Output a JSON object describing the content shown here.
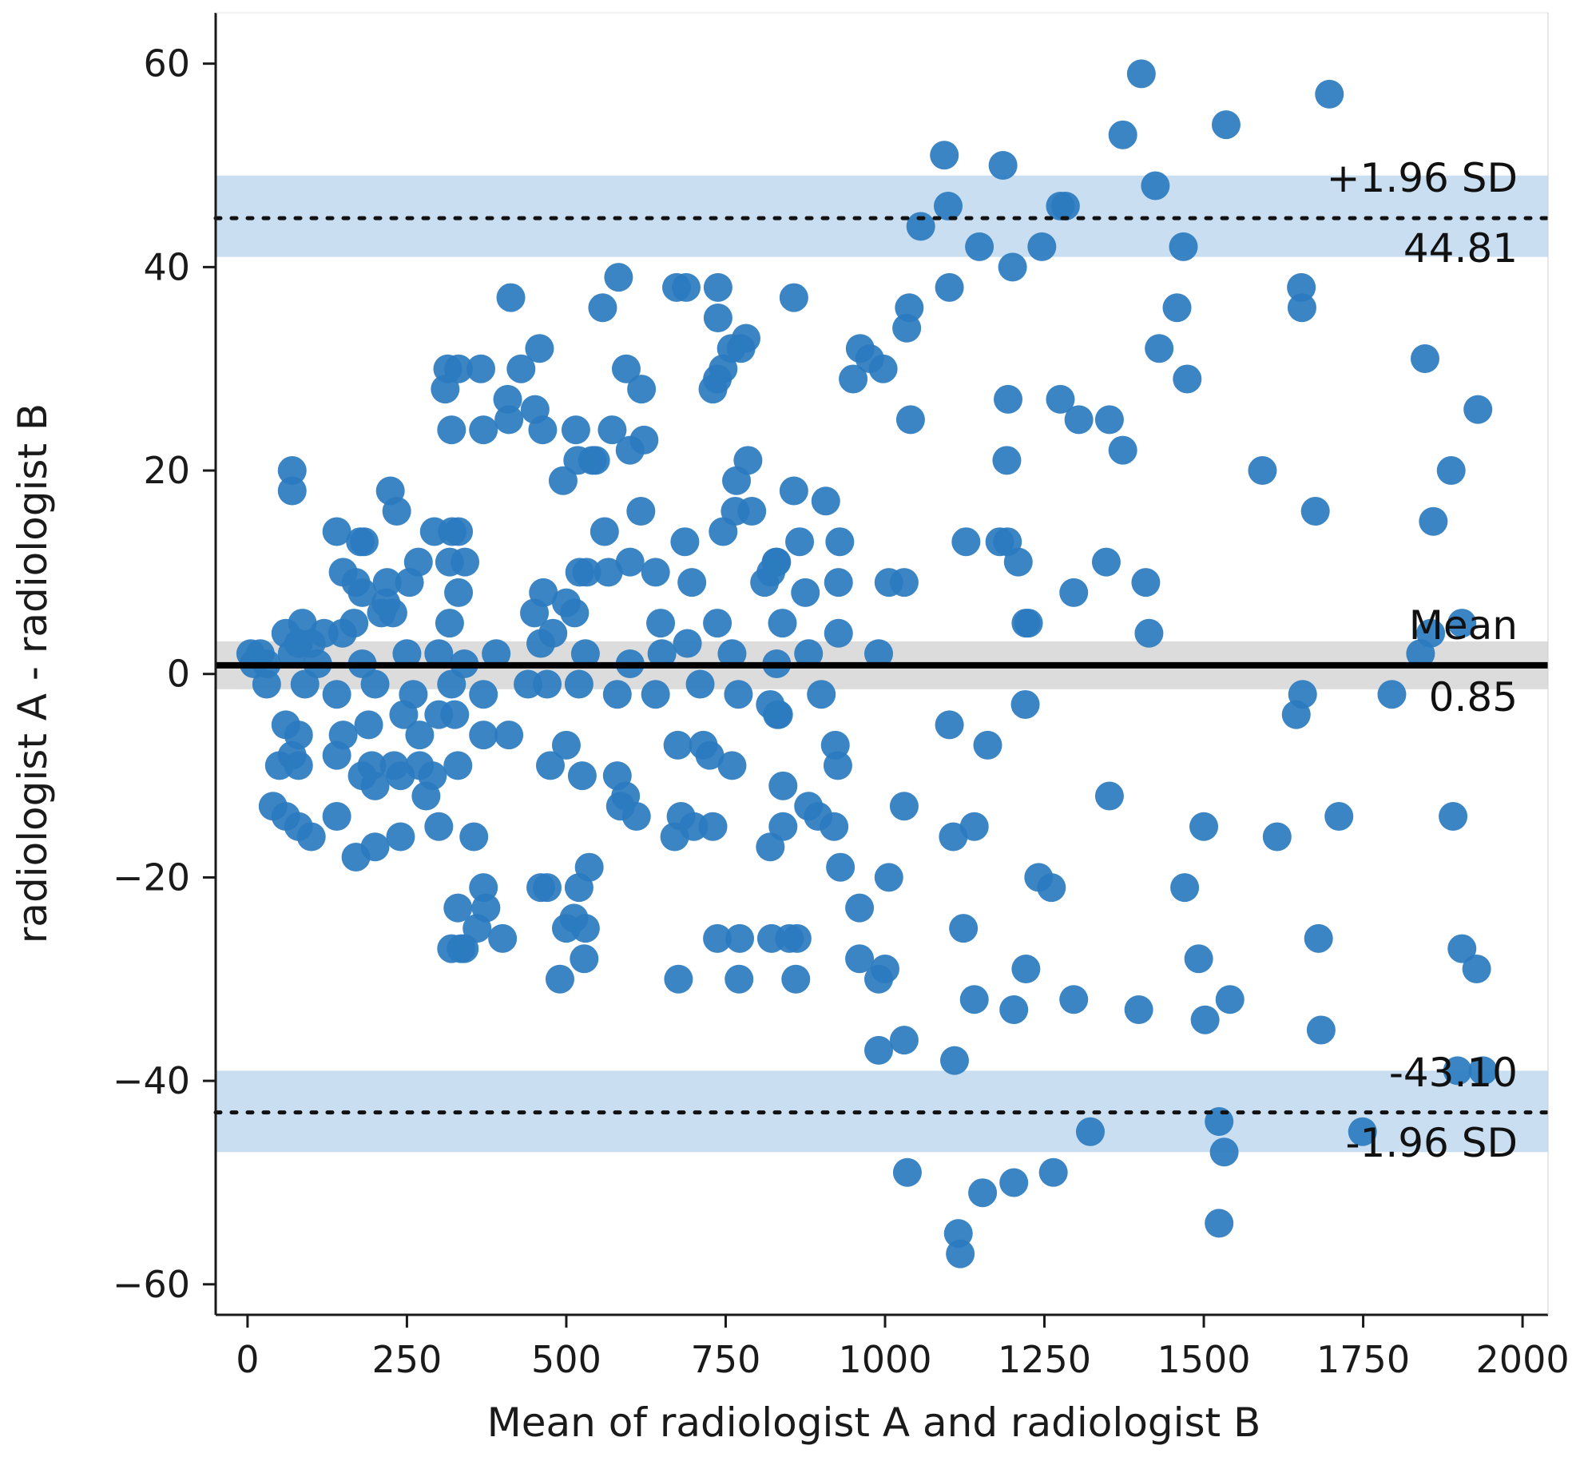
{
  "chart_data": {
    "type": "scatter",
    "title": "",
    "xlabel": "Mean of radiologist A and radiologist B",
    "ylabel": "radiologist A - radiologist B",
    "xlim": [
      -50,
      2040
    ],
    "ylim": [
      -63,
      65
    ],
    "xticks": [
      0,
      250,
      500,
      750,
      1000,
      1250,
      1500,
      1750,
      2000
    ],
    "yticks": [
      -60,
      -40,
      -20,
      0,
      20,
      40,
      60
    ],
    "xtick_labels": [
      "0",
      "250",
      "500",
      "750",
      "1000",
      "1250",
      "1500",
      "1750",
      "2000"
    ],
    "ytick_labels": [
      "−60",
      "−40",
      "−20",
      "0",
      "20",
      "40",
      "60"
    ],
    "grid": false,
    "colors": {
      "points": "#2b7bbf",
      "band": "#c9def0",
      "mean_band": "#dcdcdc",
      "mean_line": "#000000",
      "axis": "#1a1a1a"
    },
    "mean": {
      "value": 0.85,
      "ci": [
        -1.5,
        3.2
      ],
      "label": "Mean",
      "value_label": "0.85"
    },
    "upper_loa": {
      "value": 44.81,
      "ci": [
        41.0,
        49.0
      ],
      "label": "+1.96 SD",
      "value_label": "44.81"
    },
    "lower_loa": {
      "value": -43.1,
      "ci": [
        -47.0,
        -39.0
      ],
      "label": "-1.96 SD",
      "value_label": "-43.10"
    },
    "points": [
      [
        1402,
        59
      ],
      [
        1697,
        57
      ],
      [
        1535,
        54
      ],
      [
        1373,
        53
      ],
      [
        1093,
        51
      ],
      [
        1185,
        50
      ],
      [
        1424,
        48
      ],
      [
        1275,
        46
      ],
      [
        1099,
        46
      ],
      [
        1056,
        44
      ],
      [
        1283,
        46
      ],
      [
        1148,
        42
      ],
      [
        1246,
        42
      ],
      [
        1468,
        42
      ],
      [
        1200,
        40
      ],
      [
        1101,
        38
      ],
      [
        413,
        37
      ],
      [
        557,
        36
      ],
      [
        582,
        39
      ],
      [
        673,
        38
      ],
      [
        688,
        38
      ],
      [
        738,
        38
      ],
      [
        857,
        37
      ],
      [
        1038,
        36
      ],
      [
        1458,
        36
      ],
      [
        1653,
        38
      ],
      [
        1654,
        36
      ],
      [
        1034,
        34
      ],
      [
        458,
        32
      ],
      [
        738,
        35
      ],
      [
        774,
        32
      ],
      [
        782,
        33
      ],
      [
        759,
        32
      ],
      [
        746,
        30
      ],
      [
        1430,
        32
      ],
      [
        1847,
        31
      ],
      [
        314,
        30
      ],
      [
        331,
        30
      ],
      [
        366,
        30
      ],
      [
        429,
        30
      ],
      [
        594,
        30
      ],
      [
        618,
        28
      ],
      [
        310,
        28
      ],
      [
        730,
        28
      ],
      [
        737,
        29
      ],
      [
        950,
        29
      ],
      [
        961,
        32
      ],
      [
        976,
        31
      ],
      [
        997,
        30
      ],
      [
        1275,
        27
      ],
      [
        1193,
        27
      ],
      [
        1474,
        29
      ],
      [
        1930,
        26
      ],
      [
        408,
        27
      ],
      [
        410,
        25
      ],
      [
        451,
        26
      ],
      [
        463,
        24
      ],
      [
        515,
        24
      ],
      [
        1040,
        25
      ],
      [
        1304,
        25
      ],
      [
        1352,
        25
      ],
      [
        1373,
        22
      ],
      [
        320,
        24
      ],
      [
        370,
        24
      ],
      [
        600,
        22
      ],
      [
        622,
        23
      ],
      [
        518,
        21
      ],
      [
        541,
        21
      ],
      [
        546,
        21
      ],
      [
        572,
        24
      ],
      [
        495,
        19
      ],
      [
        767,
        19
      ],
      [
        785,
        21
      ],
      [
        1191,
        21
      ],
      [
        1592,
        20
      ],
      [
        1888,
        20
      ],
      [
        70,
        20
      ],
      [
        70,
        18
      ],
      [
        224,
        18
      ],
      [
        234,
        16
      ],
      [
        617,
        16
      ],
      [
        765,
        16
      ],
      [
        791,
        16
      ],
      [
        857,
        18
      ],
      [
        907,
        17
      ],
      [
        1675,
        16
      ],
      [
        1860,
        15
      ],
      [
        140,
        14
      ],
      [
        177,
        13
      ],
      [
        183,
        13
      ],
      [
        293,
        14
      ],
      [
        321,
        14
      ],
      [
        331,
        14
      ],
      [
        341,
        11
      ],
      [
        560,
        14
      ],
      [
        640,
        10
      ],
      [
        686,
        13
      ],
      [
        746,
        14
      ],
      [
        829,
        11
      ],
      [
        866,
        13
      ],
      [
        929,
        13
      ],
      [
        1127,
        13
      ],
      [
        1180,
        13
      ],
      [
        1192,
        13
      ],
      [
        1209,
        11
      ],
      [
        1347,
        11
      ],
      [
        150,
        10
      ],
      [
        170,
        9
      ],
      [
        219,
        9
      ],
      [
        254,
        9
      ],
      [
        268,
        11
      ],
      [
        317,
        11
      ],
      [
        521,
        10
      ],
      [
        532,
        10
      ],
      [
        566,
        10
      ],
      [
        600,
        11
      ],
      [
        697,
        9
      ],
      [
        811,
        9
      ],
      [
        821,
        10
      ],
      [
        830,
        11
      ],
      [
        927,
        9
      ],
      [
        1006,
        9
      ],
      [
        1030,
        9
      ],
      [
        1409,
        9
      ],
      [
        180,
        8
      ],
      [
        331,
        8
      ],
      [
        464,
        8
      ],
      [
        500,
        7
      ],
      [
        513,
        6
      ],
      [
        875,
        8
      ],
      [
        1296,
        8
      ],
      [
        1221,
        5
      ],
      [
        1225,
        5
      ],
      [
        86,
        5
      ],
      [
        120,
        4
      ],
      [
        149,
        4
      ],
      [
        167,
        5
      ],
      [
        210,
        6
      ],
      [
        217,
        7
      ],
      [
        228,
        6
      ],
      [
        317,
        5
      ],
      [
        450,
        6
      ],
      [
        479,
        4
      ],
      [
        648,
        5
      ],
      [
        737,
        5
      ],
      [
        839,
        5
      ],
      [
        927,
        4
      ],
      [
        1414,
        4
      ],
      [
        1856,
        4
      ],
      [
        1905,
        5
      ],
      [
        60,
        4
      ],
      [
        80,
        3
      ],
      [
        100,
        3
      ],
      [
        5,
        2
      ],
      [
        10,
        1
      ],
      [
        20,
        2
      ],
      [
        30,
        1
      ],
      [
        70,
        2
      ],
      [
        110,
        1
      ],
      [
        180,
        1
      ],
      [
        250,
        2
      ],
      [
        300,
        2
      ],
      [
        340,
        1
      ],
      [
        390,
        2
      ],
      [
        460,
        3
      ],
      [
        530,
        2
      ],
      [
        600,
        1
      ],
      [
        650,
        2
      ],
      [
        690,
        3
      ],
      [
        760,
        2
      ],
      [
        830,
        1
      ],
      [
        880,
        2
      ],
      [
        990,
        2
      ],
      [
        1840,
        2
      ],
      [
        30,
        -1
      ],
      [
        90,
        -1
      ],
      [
        140,
        -2
      ],
      [
        200,
        -1
      ],
      [
        260,
        -2
      ],
      [
        320,
        -1
      ],
      [
        370,
        -2
      ],
      [
        440,
        -1
      ],
      [
        470,
        -1
      ],
      [
        520,
        -1
      ],
      [
        580,
        -2
      ],
      [
        640,
        -2
      ],
      [
        710,
        -1
      ],
      [
        770,
        -2
      ],
      [
        820,
        -3
      ],
      [
        900,
        -2
      ],
      [
        1220,
        -3
      ],
      [
        1655,
        -2
      ],
      [
        1795,
        -2
      ],
      [
        1645,
        -4
      ],
      [
        60,
        -5
      ],
      [
        80,
        -6
      ],
      [
        150,
        -6
      ],
      [
        190,
        -5
      ],
      [
        245,
        -4
      ],
      [
        270,
        -6
      ],
      [
        300,
        -4
      ],
      [
        325,
        -4
      ],
      [
        370,
        -6
      ],
      [
        410,
        -6
      ],
      [
        831,
        -4
      ],
      [
        833,
        -4
      ],
      [
        1101,
        -5
      ],
      [
        50,
        -9
      ],
      [
        70,
        -8
      ],
      [
        80,
        -9
      ],
      [
        140,
        -8
      ],
      [
        195,
        -9
      ],
      [
        230,
        -9
      ],
      [
        270,
        -9
      ],
      [
        290,
        -10
      ],
      [
        330,
        -9
      ],
      [
        475,
        -9
      ],
      [
        500,
        -7
      ],
      [
        525,
        -10
      ],
      [
        580,
        -10
      ],
      [
        675,
        -7
      ],
      [
        715,
        -7
      ],
      [
        725,
        -8
      ],
      [
        760,
        -9
      ],
      [
        922,
        -7
      ],
      [
        926,
        -9
      ],
      [
        1161,
        -7
      ],
      [
        180,
        -10
      ],
      [
        200,
        -11
      ],
      [
        240,
        -10
      ],
      [
        280,
        -12
      ],
      [
        40,
        -13
      ],
      [
        60,
        -14
      ],
      [
        80,
        -15
      ],
      [
        100,
        -16
      ],
      [
        140,
        -14
      ],
      [
        170,
        -18
      ],
      [
        200,
        -17
      ],
      [
        240,
        -16
      ],
      [
        300,
        -15
      ],
      [
        355,
        -16
      ],
      [
        585,
        -13
      ],
      [
        593,
        -12
      ],
      [
        610,
        -14
      ],
      [
        670,
        -16
      ],
      [
        680,
        -14
      ],
      [
        700,
        -15
      ],
      [
        730,
        -15
      ],
      [
        840,
        -11
      ],
      [
        820,
        -17
      ],
      [
        840,
        -15
      ],
      [
        880,
        -13
      ],
      [
        895,
        -14
      ],
      [
        920,
        -15
      ],
      [
        930,
        -19
      ],
      [
        960,
        -23
      ],
      [
        1030,
        -13
      ],
      [
        1107,
        -16
      ],
      [
        1140,
        -15
      ],
      [
        1352,
        -12
      ],
      [
        1500,
        -15
      ],
      [
        1615,
        -16
      ],
      [
        1712,
        -14
      ],
      [
        1891,
        -14
      ],
      [
        1006,
        -20
      ],
      [
        1241,
        -20
      ],
      [
        1261,
        -21
      ],
      [
        1470,
        -21
      ],
      [
        370,
        -21
      ],
      [
        374,
        -23
      ],
      [
        460,
        -21
      ],
      [
        470,
        -21
      ],
      [
        520,
        -21
      ],
      [
        536,
        -19
      ],
      [
        330,
        -23
      ],
      [
        360,
        -25
      ],
      [
        400,
        -26
      ],
      [
        500,
        -25
      ],
      [
        512,
        -24
      ],
      [
        530,
        -25
      ],
      [
        528,
        -28
      ],
      [
        320,
        -27
      ],
      [
        335,
        -27
      ],
      [
        340,
        -27
      ],
      [
        737,
        -26
      ],
      [
        772,
        -26
      ],
      [
        822,
        -26
      ],
      [
        850,
        -26
      ],
      [
        862,
        -26
      ],
      [
        490,
        -30
      ],
      [
        676,
        -30
      ],
      [
        771,
        -30
      ],
      [
        860,
        -30
      ],
      [
        960,
        -28
      ],
      [
        990,
        -30
      ],
      [
        1000,
        -29
      ],
      [
        1123,
        -25
      ],
      [
        1221,
        -29
      ],
      [
        1140,
        -32
      ],
      [
        1202,
        -33
      ],
      [
        1296,
        -32
      ],
      [
        1398,
        -33
      ],
      [
        1502,
        -34
      ],
      [
        1541,
        -32
      ],
      [
        1492,
        -28
      ],
      [
        1680,
        -26
      ],
      [
        1684,
        -35
      ],
      [
        1905,
        -27
      ],
      [
        1928,
        -29
      ],
      [
        990,
        -37
      ],
      [
        1030,
        -36
      ],
      [
        1109,
        -38
      ],
      [
        1898,
        -39
      ],
      [
        1938,
        -39
      ],
      [
        1322,
        -45
      ],
      [
        1524,
        -44
      ],
      [
        1749,
        -45
      ],
      [
        1532,
        -47
      ],
      [
        1035,
        -49
      ],
      [
        1202,
        -50
      ],
      [
        1264,
        -49
      ],
      [
        1153,
        -51
      ],
      [
        1115,
        -55
      ],
      [
        1118,
        -57
      ],
      [
        1524,
        -54
      ]
    ]
  }
}
